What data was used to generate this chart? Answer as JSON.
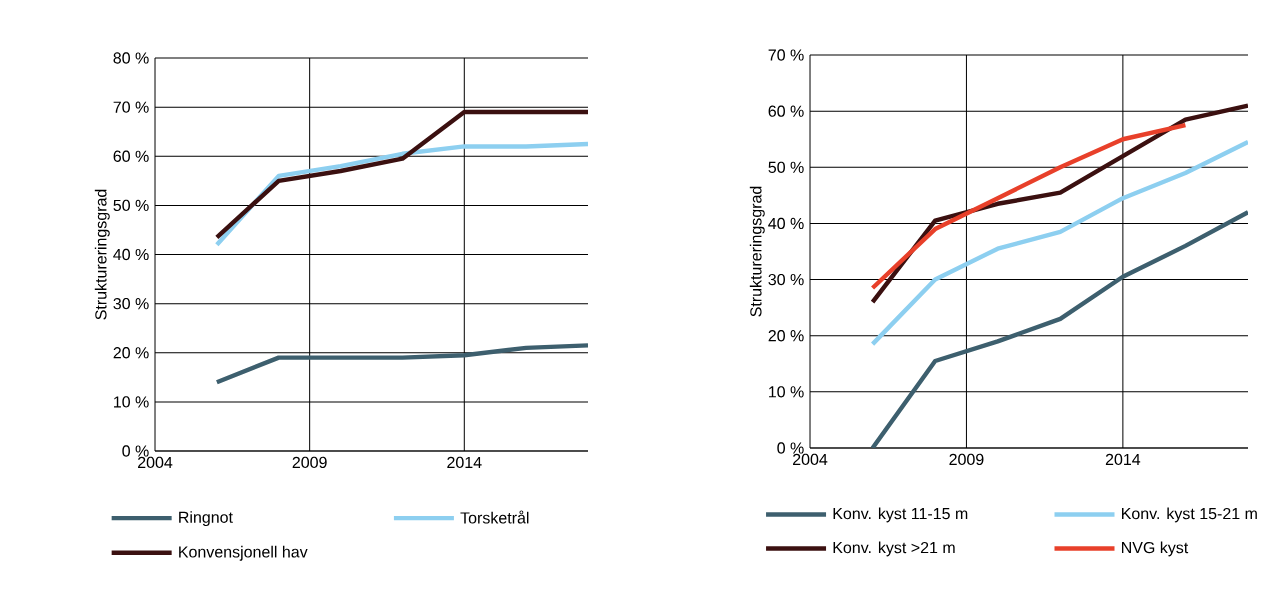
{
  "chart_data": [
    {
      "type": "line",
      "ylabel": "Struktureringsgrad",
      "x": [
        2006,
        2008,
        2010,
        2012,
        2014,
        2016,
        2018
      ],
      "xlim": [
        2004,
        2018
      ],
      "xticks": [
        2004,
        2009,
        2014
      ],
      "ylim": [
        0,
        80
      ],
      "yticks": [
        {
          "value": 0,
          "label": "0 %"
        },
        {
          "value": 10,
          "label": "10 %"
        },
        {
          "value": 20,
          "label": "20 %"
        },
        {
          "value": 30,
          "label": "30 %"
        },
        {
          "value": 40,
          "label": "40 %"
        },
        {
          "value": 50,
          "label": "50 %"
        },
        {
          "value": 60,
          "label": "60 %"
        },
        {
          "value": 70,
          "label": "70 %"
        },
        {
          "value": 80,
          "label": "80 %"
        }
      ],
      "grid": true,
      "legend": "bottom",
      "marker": "none",
      "line_style": "solid",
      "series": [
        {
          "name": "Ringnot",
          "color": "#3d5f6e",
          "values": [
            14,
            19,
            19,
            19,
            19.5,
            21,
            21.5
          ]
        },
        {
          "name": "Torsketrål",
          "color": "#8dcff0",
          "values": [
            42,
            56,
            58,
            60.5,
            62,
            62,
            62.5
          ]
        },
        {
          "name": "Konvensjonell hav",
          "color": "#3b1010",
          "values": [
            43.5,
            55,
            57,
            59.5,
            69,
            69,
            69
          ]
        }
      ]
    },
    {
      "type": "line",
      "ylabel": "Struktureringsgrad",
      "x": [
        2006,
        2008,
        2010,
        2012,
        2014,
        2016,
        2018
      ],
      "xlim": [
        2004,
        2018
      ],
      "xticks": [
        2004,
        2009,
        2014
      ],
      "ylim": [
        0,
        70
      ],
      "yticks": [
        {
          "value": 0,
          "label": "0 %"
        },
        {
          "value": 10,
          "label": "10 %"
        },
        {
          "value": 20,
          "label": "20 %"
        },
        {
          "value": 30,
          "label": "30 %"
        },
        {
          "value": 40,
          "label": "40 %"
        },
        {
          "value": 50,
          "label": "50 %"
        },
        {
          "value": 60,
          "label": "60 %"
        },
        {
          "value": 70,
          "label": "70 %"
        }
      ],
      "grid": true,
      "legend": "bottom",
      "marker": "none",
      "line_style": "solid",
      "series": [
        {
          "name": "Konv. kyst 11-15 m",
          "color": "#3d5f6e",
          "values": [
            0,
            15.5,
            19,
            23,
            30.5,
            36,
            42
          ]
        },
        {
          "name": "Konv. kyst 15-21 m",
          "color": "#8dcff0",
          "values": [
            18.5,
            30,
            35.5,
            38.5,
            44.5,
            49,
            54.5
          ]
        },
        {
          "name": "Konv. kyst >21 m",
          "color": "#3b1010",
          "values": [
            26,
            40.5,
            43.5,
            45.5,
            52,
            58.5,
            61
          ]
        },
        {
          "name": "NVG kyst",
          "color": "#e8402a",
          "values": [
            28.5,
            39,
            44.5,
            50,
            55,
            57.5,
            null
          ]
        }
      ]
    }
  ]
}
